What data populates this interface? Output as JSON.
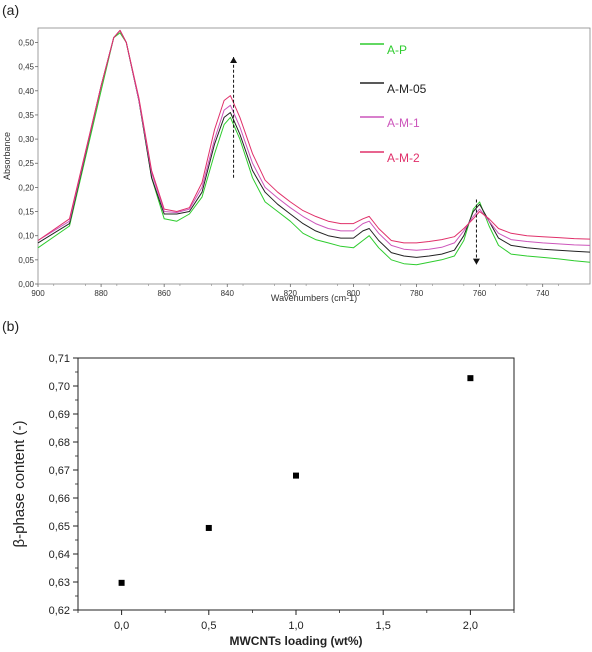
{
  "panel_labels": {
    "a": "(a)",
    "b": "(b)"
  },
  "chart_data": [
    {
      "type": "line",
      "title": "",
      "xlabel": "Wavenumbers (cm-1)",
      "ylabel": "Absorbance",
      "xlim": [
        900,
        725
      ],
      "ylim": [
        0,
        0.53
      ],
      "x_reversed": true,
      "grid": false,
      "legend_position": "right",
      "x_tick_labels": [
        "900",
        "880",
        "860",
        "840",
        "820",
        "800",
        "780",
        "760",
        "740"
      ],
      "y_tick_labels": [
        "0,00",
        "0,05",
        "0,10",
        "0,15",
        "0,20",
        "0,25",
        "0,30",
        "0,35",
        "0,40",
        "0,45",
        "0,50"
      ],
      "series": [
        {
          "name": "A-P",
          "color": "#2ecc2e",
          "x": [
            900,
            890,
            880,
            876,
            874,
            872,
            868,
            864,
            860,
            856,
            852,
            848,
            844,
            841,
            839,
            836,
            832,
            828,
            824,
            820,
            816,
            812,
            808,
            804,
            800,
            797,
            795,
            792,
            788,
            784,
            780,
            776,
            772,
            768,
            765,
            762,
            760,
            757,
            754,
            750,
            745,
            740,
            735,
            730,
            725
          ],
          "y": [
            0.075,
            0.12,
            0.4,
            0.51,
            0.52,
            0.5,
            0.38,
            0.22,
            0.135,
            0.13,
            0.145,
            0.18,
            0.27,
            0.33,
            0.345,
            0.3,
            0.22,
            0.17,
            0.15,
            0.13,
            0.105,
            0.092,
            0.085,
            0.078,
            0.075,
            0.09,
            0.1,
            0.075,
            0.05,
            0.042,
            0.04,
            0.045,
            0.05,
            0.058,
            0.09,
            0.155,
            0.17,
            0.12,
            0.08,
            0.062,
            0.058,
            0.055,
            0.052,
            0.048,
            0.045
          ]
        },
        {
          "name": "A-M-05",
          "color": "#222222",
          "x": [
            900,
            890,
            880,
            876,
            874,
            872,
            868,
            864,
            860,
            856,
            852,
            848,
            844,
            841,
            839,
            836,
            832,
            828,
            824,
            820,
            816,
            812,
            808,
            804,
            800,
            797,
            795,
            792,
            788,
            784,
            780,
            776,
            772,
            768,
            765,
            762,
            760,
            757,
            754,
            750,
            745,
            740,
            735,
            730,
            725
          ],
          "y": [
            0.085,
            0.125,
            0.41,
            0.51,
            0.525,
            0.5,
            0.38,
            0.22,
            0.145,
            0.145,
            0.15,
            0.19,
            0.29,
            0.345,
            0.355,
            0.31,
            0.235,
            0.19,
            0.165,
            0.145,
            0.125,
            0.11,
            0.1,
            0.095,
            0.095,
            0.11,
            0.115,
            0.09,
            0.065,
            0.058,
            0.055,
            0.058,
            0.062,
            0.07,
            0.1,
            0.15,
            0.165,
            0.13,
            0.095,
            0.08,
            0.075,
            0.072,
            0.07,
            0.068,
            0.066
          ]
        },
        {
          "name": "A-M-1",
          "color": "#cc55bb",
          "x": [
            900,
            890,
            880,
            876,
            874,
            872,
            868,
            864,
            860,
            856,
            852,
            848,
            844,
            841,
            839,
            836,
            832,
            828,
            824,
            820,
            816,
            812,
            808,
            804,
            800,
            797,
            795,
            792,
            788,
            784,
            780,
            776,
            772,
            768,
            765,
            762,
            760,
            757,
            754,
            750,
            745,
            740,
            735,
            730,
            725
          ],
          "y": [
            0.09,
            0.13,
            0.41,
            0.51,
            0.525,
            0.5,
            0.38,
            0.23,
            0.15,
            0.148,
            0.155,
            0.2,
            0.3,
            0.36,
            0.37,
            0.325,
            0.25,
            0.2,
            0.178,
            0.158,
            0.14,
            0.125,
            0.115,
            0.11,
            0.11,
            0.125,
            0.13,
            0.105,
            0.08,
            0.072,
            0.07,
            0.072,
            0.076,
            0.085,
            0.11,
            0.14,
            0.155,
            0.13,
            0.105,
            0.092,
            0.088,
            0.085,
            0.083,
            0.081,
            0.08
          ]
        },
        {
          "name": "A-M-2",
          "color": "#e0306a",
          "x": [
            900,
            890,
            880,
            876,
            874,
            872,
            868,
            864,
            860,
            856,
            852,
            848,
            844,
            841,
            839,
            836,
            832,
            828,
            824,
            820,
            816,
            812,
            808,
            804,
            800,
            797,
            795,
            792,
            788,
            784,
            780,
            776,
            772,
            768,
            765,
            762,
            760,
            757,
            754,
            750,
            745,
            740,
            735,
            730,
            725
          ],
          "y": [
            0.09,
            0.135,
            0.41,
            0.51,
            0.525,
            0.5,
            0.385,
            0.235,
            0.155,
            0.15,
            0.158,
            0.21,
            0.32,
            0.38,
            0.39,
            0.345,
            0.27,
            0.215,
            0.19,
            0.17,
            0.152,
            0.14,
            0.13,
            0.125,
            0.125,
            0.135,
            0.14,
            0.115,
            0.09,
            0.085,
            0.085,
            0.088,
            0.092,
            0.098,
            0.115,
            0.135,
            0.15,
            0.135,
            0.115,
            0.105,
            0.1,
            0.098,
            0.096,
            0.094,
            0.093
          ]
        }
      ],
      "annotations": [
        {
          "type": "arrow-up",
          "x": 838,
          "y_from": 0.22,
          "y_to": 0.47
        },
        {
          "type": "arrow-down",
          "x": 761,
          "y_from": 0.175,
          "y_to": 0.04
        }
      ]
    },
    {
      "type": "scatter",
      "title": "",
      "xlabel": "MWCNTs loading (wt%)",
      "ylabel": "β-phase content (-)",
      "xlim": [
        -0.25,
        2.25
      ],
      "ylim": [
        0.62,
        0.71
      ],
      "grid": false,
      "x_tick_labels": [
        "0,0",
        "0,5",
        "1,0",
        "1,5",
        "2,0"
      ],
      "y_tick_labels": [
        "0,62",
        "0,63",
        "0,64",
        "0,65",
        "0,66",
        "0,67",
        "0,68",
        "0,69",
        "0,70",
        "0,71"
      ],
      "series": [
        {
          "color": "#000000",
          "x": [
            0.0,
            0.5,
            1.0,
            2.0
          ],
          "y": [
            0.6297,
            0.6493,
            0.668,
            0.7028
          ]
        }
      ]
    }
  ]
}
